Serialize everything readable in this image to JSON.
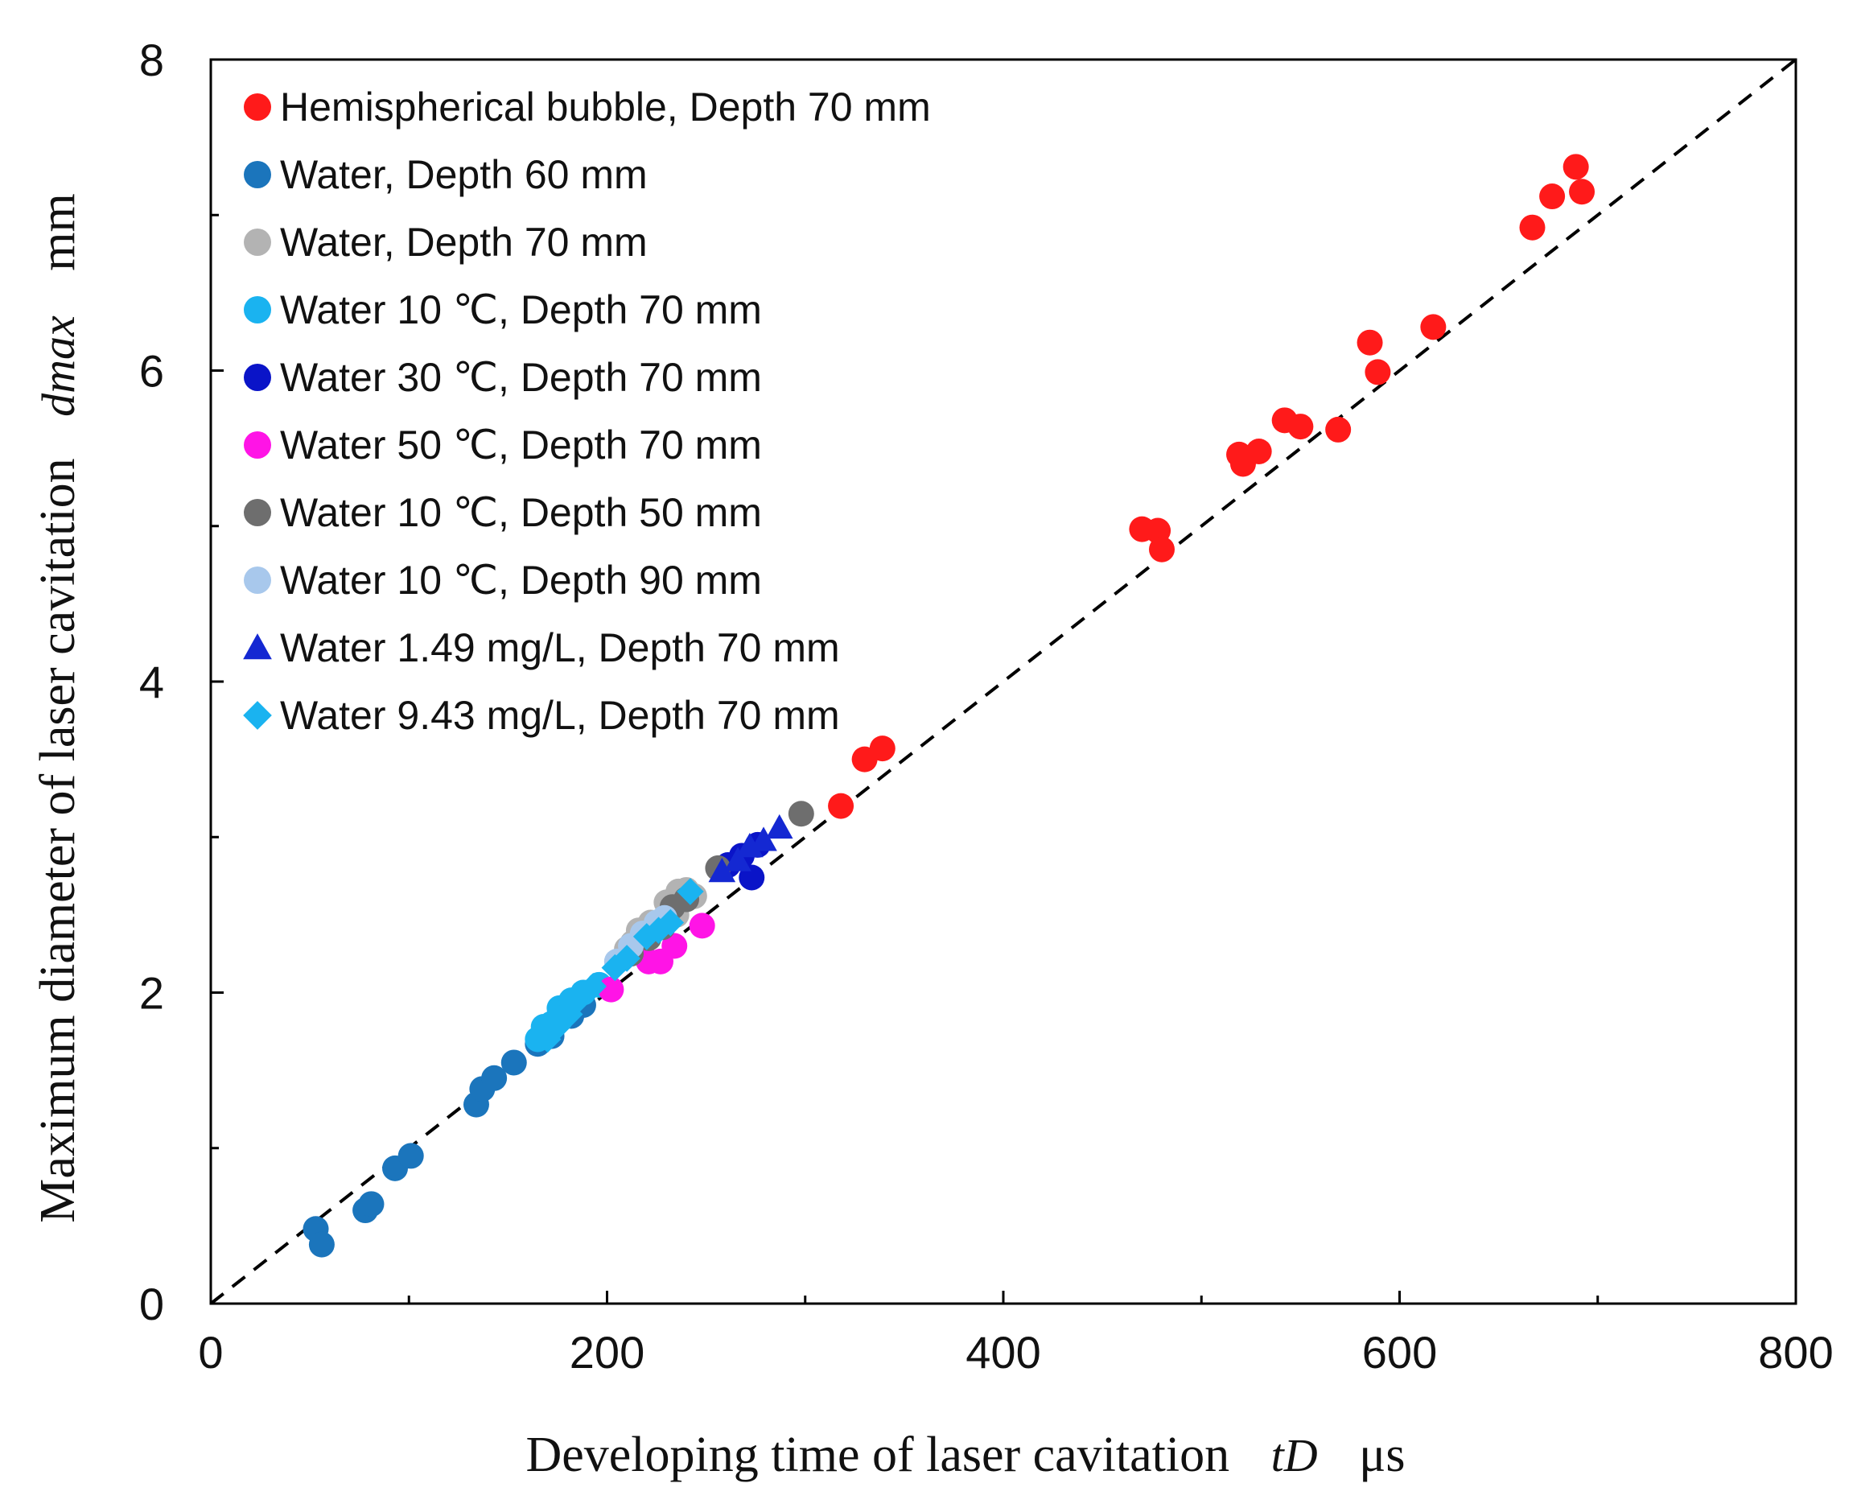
{
  "chart_data": {
    "type": "scatter",
    "title": "",
    "xlabel": "Developing time of laser cavitation",
    "xlabel_symbol": "tD",
    "xlabel_unit": "μs",
    "ylabel": "Maximum diameter of laser cavitation",
    "ylabel_symbol": "dmax",
    "ylabel_unit": "mm",
    "xlim": [
      0,
      800
    ],
    "ylim": [
      0,
      8
    ],
    "x_ticks": [
      "0",
      "200",
      "400",
      "600",
      "800"
    ],
    "y_ticks": [
      "0",
      "2",
      "4",
      "6",
      "8"
    ],
    "x_tick_values": [
      0,
      200,
      400,
      600,
      800
    ],
    "y_tick_values": [
      0,
      2,
      4,
      6,
      8
    ],
    "reference_line": {
      "style": "dashed",
      "from": [
        0,
        0
      ],
      "to": [
        800,
        8
      ]
    },
    "grid": false,
    "legend_position": "top-left",
    "series": [
      {
        "name": "Hemispherical bubble, Depth 70 mm",
        "color": "#ff1a1a",
        "marker": "circle",
        "points": [
          [
            318,
            3.2
          ],
          [
            330,
            3.5
          ],
          [
            339,
            3.57
          ],
          [
            470,
            4.98
          ],
          [
            478,
            4.97
          ],
          [
            480,
            4.85
          ],
          [
            519,
            5.46
          ],
          [
            521,
            5.4
          ],
          [
            529,
            5.48
          ],
          [
            542,
            5.68
          ],
          [
            550,
            5.64
          ],
          [
            569,
            5.62
          ],
          [
            585,
            6.18
          ],
          [
            589,
            5.99
          ],
          [
            617,
            6.28
          ],
          [
            667,
            6.92
          ],
          [
            677,
            7.12
          ],
          [
            689,
            7.31
          ],
          [
            692,
            7.15
          ]
        ]
      },
      {
        "name": "Water, Depth 60 mm",
        "color": "#1b75bc",
        "marker": "circle",
        "points": [
          [
            53,
            0.48
          ],
          [
            56,
            0.38
          ],
          [
            78,
            0.6
          ],
          [
            81,
            0.64
          ],
          [
            93,
            0.87
          ],
          [
            101,
            0.95
          ],
          [
            134,
            1.28
          ],
          [
            137,
            1.38
          ],
          [
            143,
            1.45
          ],
          [
            153,
            1.55
          ],
          [
            165,
            1.67
          ],
          [
            172,
            1.72
          ],
          [
            182,
            1.85
          ],
          [
            188,
            1.92
          ]
        ]
      },
      {
        "name": "Water, Depth 70 mm",
        "color": "#b3b3b3",
        "marker": "circle",
        "points": [
          [
            210,
            2.28
          ],
          [
            213,
            2.32
          ],
          [
            216,
            2.4
          ],
          [
            222,
            2.45
          ],
          [
            230,
            2.58
          ],
          [
            236,
            2.65
          ],
          [
            240,
            2.66
          ],
          [
            235,
            2.5
          ],
          [
            244,
            2.62
          ]
        ]
      },
      {
        "name": "Water 10 ℃, Depth 70 mm",
        "color": "#1ab3f0",
        "marker": "circle",
        "points": [
          [
            165,
            1.7
          ],
          [
            168,
            1.78
          ],
          [
            172,
            1.8
          ],
          [
            176,
            1.9
          ],
          [
            182,
            1.95
          ],
          [
            188,
            2.0
          ],
          [
            196,
            2.05
          ]
        ]
      },
      {
        "name": "Water 30 ℃, Depth 70 mm",
        "color": "#0a14c8",
        "marker": "circle",
        "points": [
          [
            261,
            2.82
          ],
          [
            268,
            2.88
          ],
          [
            273,
            2.74
          ],
          [
            276,
            2.95
          ]
        ]
      },
      {
        "name": "Water 50 ℃, Depth 70 mm",
        "color": "#ff14e6",
        "marker": "circle",
        "points": [
          [
            202,
            2.02
          ],
          [
            221,
            2.2
          ],
          [
            227,
            2.2
          ],
          [
            234,
            2.3
          ],
          [
            248,
            2.43
          ]
        ]
      },
      {
        "name": "Water 10 ℃, Depth 50 mm",
        "color": "#6e6e6e",
        "marker": "circle",
        "points": [
          [
            212,
            2.25
          ],
          [
            221,
            2.35
          ],
          [
            228,
            2.42
          ],
          [
            233,
            2.55
          ],
          [
            240,
            2.6
          ],
          [
            256,
            2.8
          ],
          [
            298,
            3.15
          ]
        ]
      },
      {
        "name": "Water 10 ℃, Depth 90 mm",
        "color": "#a8c8ec",
        "marker": "circle",
        "points": [
          [
            205,
            2.2
          ],
          [
            212,
            2.3
          ],
          [
            218,
            2.38
          ],
          [
            225,
            2.45
          ],
          [
            229,
            2.48
          ]
        ]
      },
      {
        "name": "Water 1.49 mg/L, Depth 70 mm",
        "color": "#1428d2",
        "marker": "triangle",
        "points": [
          [
            258,
            2.78
          ],
          [
            266,
            2.85
          ],
          [
            272,
            2.94
          ],
          [
            279,
            2.98
          ],
          [
            287,
            3.06
          ]
        ]
      },
      {
        "name": "Water 9.43 mg/L, Depth 70 mm",
        "color": "#1ab3f0",
        "marker": "diamond",
        "points": [
          [
            170,
            1.7
          ],
          [
            175,
            1.78
          ],
          [
            181,
            1.86
          ],
          [
            186,
            1.96
          ],
          [
            193,
            2.04
          ],
          [
            204,
            2.16
          ],
          [
            210,
            2.22
          ],
          [
            220,
            2.36
          ],
          [
            226,
            2.4
          ],
          [
            232,
            2.45
          ],
          [
            242,
            2.65
          ]
        ]
      }
    ]
  }
}
